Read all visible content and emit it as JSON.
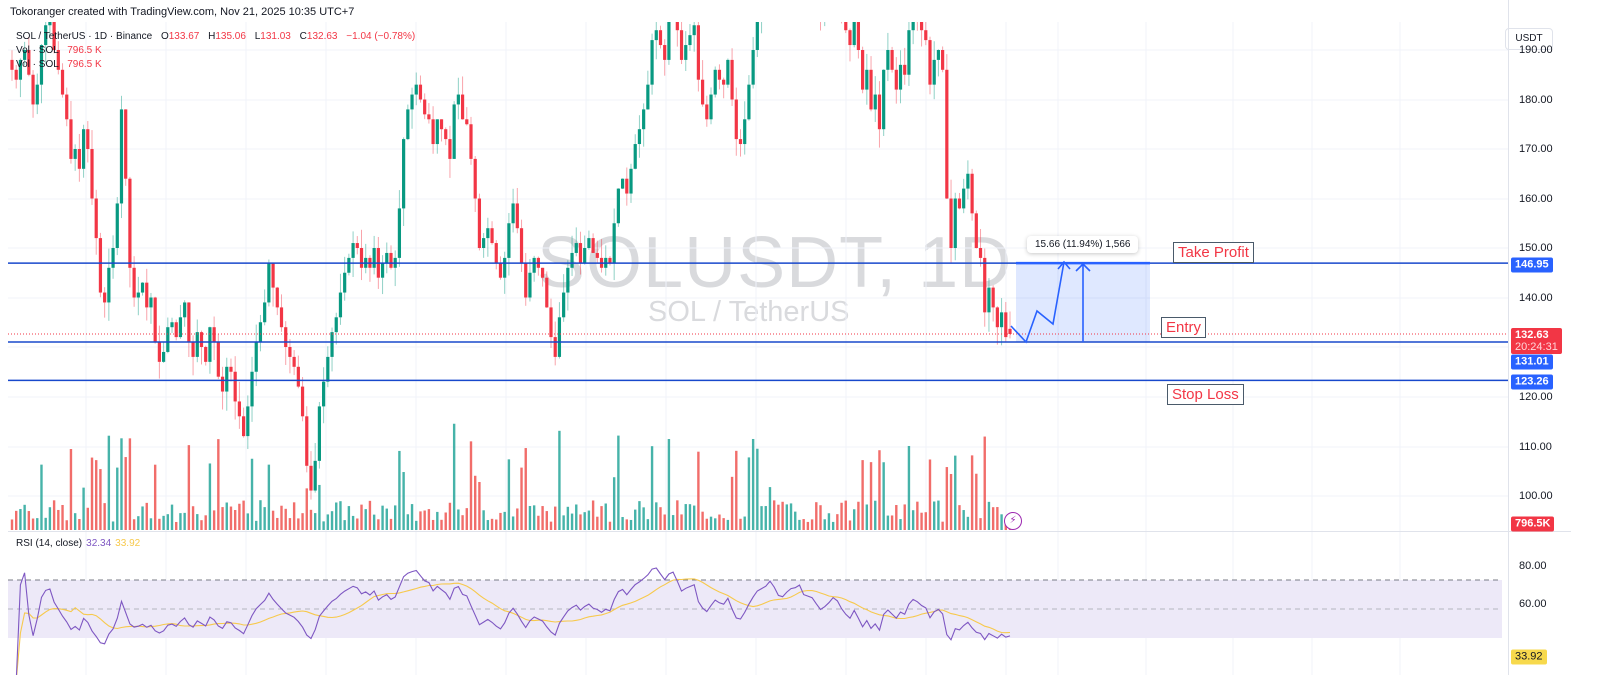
{
  "credit": "Tokoranger created with TradingView.com, Nov 21, 2025 10:35 UTC+7",
  "legend": {
    "symbol": "SOL / TetherUS · 1D · Binance",
    "open_label": "O",
    "open": "133.67",
    "high_label": "H",
    "high": "135.06",
    "low_label": "L",
    "low": "131.03",
    "close_label": "C",
    "close": "132.63",
    "change": "−1.04 (−0.78%)",
    "volume_rows": [
      {
        "label": "Vol · SOL",
        "value": "796.5 K"
      },
      {
        "label": "Vol · SOL",
        "value": "796.5 K"
      }
    ]
  },
  "watermark": {
    "main": "SOLUSDT, 1D",
    "sub": "SOL / TetherUS"
  },
  "price_axis": {
    "currency": "USDT",
    "ticks": [
      "190.00",
      "180.00",
      "170.00",
      "160.00",
      "150.00",
      "140.00",
      "120.00",
      "110.00",
      "100.00"
    ],
    "badges": {
      "take_profit": "146.95",
      "last_price": "132.63",
      "countdown": "20:24:31",
      "entry": "131.01",
      "stop_loss": "123.26",
      "volume": "796.5K",
      "rsi_ma": "33.92"
    }
  },
  "rsi_axis": {
    "ticks": [
      "80.00",
      "60.00"
    ]
  },
  "annotations": {
    "take_profit": "Take Profit",
    "entry": "Entry",
    "stop_loss": "Stop Loss",
    "measure": "15.66 (11.94%) 1,566"
  },
  "rsi_legend": {
    "label": "RSI (14, close)",
    "rsi": "32.34",
    "ma": "33.92"
  },
  "colors": {
    "up": "#089981",
    "down": "#f23645",
    "line": "#1848cc",
    "rsi": "#7e57c2",
    "rsi_ma": "#f7c94c",
    "badge_blue": "#2962ff",
    "badge_red": "#f23645",
    "badge_yellow": "#f7d94c",
    "band": "#ede9f8"
  },
  "chart_data": {
    "type": "candlestick",
    "title": "SOL / TetherUS · 1D · Binance",
    "symbol": "SOLUSDT",
    "interval": "1D",
    "ohlc_last": {
      "open": 133.67,
      "high": 135.06,
      "low": 131.03,
      "close": 132.63,
      "change": -1.04,
      "change_pct": -0.78
    },
    "ylim": [
      95,
      195
    ],
    "y_ticks": [
      100,
      110,
      120,
      140,
      150,
      160,
      170,
      180,
      190
    ],
    "closes": [
      186,
      184,
      188,
      190,
      185,
      179,
      183,
      191,
      195,
      196,
      190,
      186,
      181,
      176,
      168,
      170,
      166,
      174,
      170,
      160,
      152,
      141,
      139,
      146,
      150,
      159,
      178,
      164,
      146,
      140,
      141,
      143,
      138,
      140,
      131,
      127,
      129,
      134,
      135,
      132,
      136,
      139,
      131,
      128,
      133,
      130,
      127,
      134,
      131,
      124,
      121,
      126,
      125,
      119,
      116,
      112,
      118,
      125,
      131,
      135,
      139,
      147,
      142,
      138,
      134,
      130,
      128,
      126,
      122,
      116,
      106,
      101,
      107,
      118,
      123,
      128,
      133,
      136,
      141,
      145,
      148,
      151,
      150,
      146,
      148,
      146,
      150,
      144,
      147,
      149,
      146,
      148,
      158,
      172,
      178,
      181,
      183,
      180,
      177,
      176,
      171,
      176,
      174,
      172,
      168,
      179,
      181,
      176,
      175,
      168,
      160,
      150,
      152,
      154,
      151,
      147,
      144,
      148,
      155,
      159,
      154,
      147,
      140,
      145,
      148,
      146,
      144,
      138,
      132,
      128,
      136,
      141,
      146,
      149,
      151,
      147,
      150,
      152,
      149,
      148,
      146,
      148,
      147,
      155,
      162,
      164,
      161,
      166,
      171,
      174,
      178,
      183,
      192,
      194,
      191,
      188,
      196,
      199,
      194,
      188,
      191,
      193,
      195,
      184,
      179,
      176,
      181,
      186,
      184,
      183,
      188,
      180,
      172,
      171,
      176,
      183,
      190,
      197,
      200,
      203,
      210,
      206,
      200,
      199,
      204,
      208,
      209,
      212,
      206,
      205,
      204,
      200,
      196,
      198,
      201,
      205,
      203,
      198,
      194,
      191,
      196,
      190,
      182,
      186,
      178,
      181,
      174,
      186,
      190,
      186,
      182,
      187,
      185,
      194,
      199,
      197,
      194,
      192,
      183,
      188,
      190,
      186,
      160,
      150,
      160,
      158,
      162,
      165,
      157,
      150,
      148,
      137,
      142,
      138,
      134,
      137,
      132,
      133
    ],
    "levels": [
      {
        "name": "Take Profit",
        "price": 146.95
      },
      {
        "name": "Entry",
        "price": 131.01
      },
      {
        "name": "Stop Loss",
        "price": 123.26
      },
      {
        "name": "Last Price",
        "price": 132.63
      }
    ],
    "measure": {
      "change": 15.66,
      "change_pct": 11.94,
      "ticks": 1566
    },
    "volume_last": "796.5K",
    "rsi": {
      "length": 14,
      "source": "close",
      "value": 32.34,
      "ma": 33.92,
      "upper_band": 70,
      "lower_band": 30,
      "ticks": [
        80,
        60
      ]
    }
  }
}
